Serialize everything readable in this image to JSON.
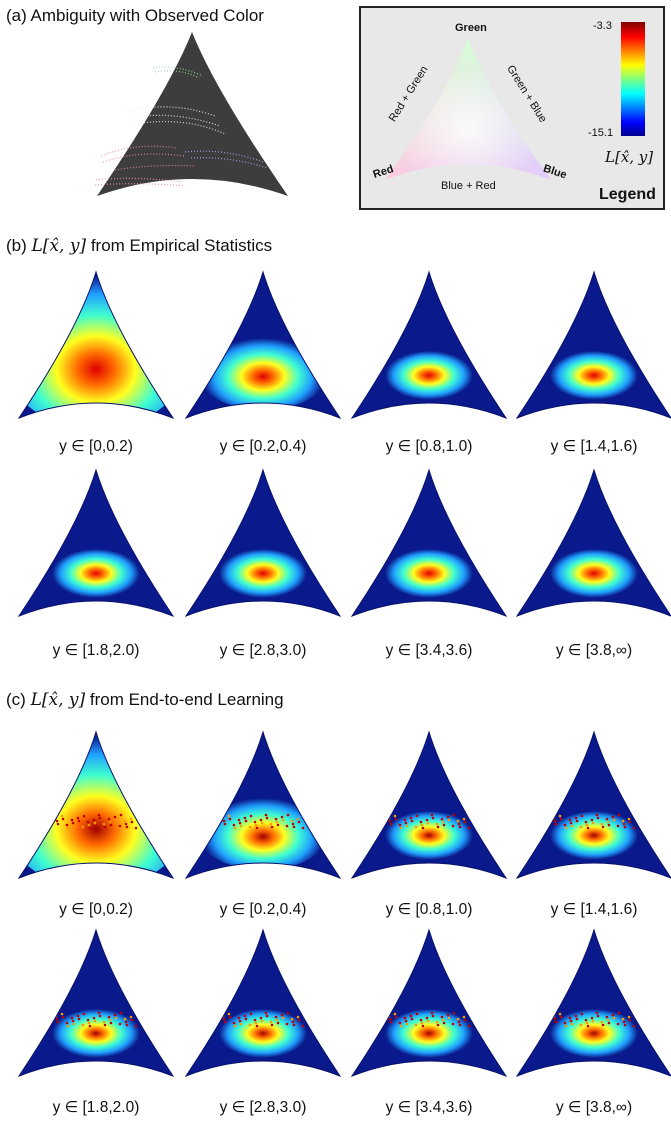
{
  "panel_a": {
    "title": "(a) Ambiguity with Observed Color",
    "legend": {
      "vertex_green": "Green",
      "vertex_red": "Red",
      "vertex_blue": "Blue",
      "edge_red_green": "Red + Green",
      "edge_green_blue": "Green + Blue",
      "edge_blue_red": "Blue + Red",
      "colorbar_max": "-3.3",
      "colorbar_min": "-15.1",
      "colorbar_label": "L[x̂, y]",
      "title": "Legend"
    }
  },
  "panel_b": {
    "title_prefix": "(b)",
    "title_math": "L[x̂, y]",
    "title_suffix": "from Empirical Statistics",
    "captions": [
      "y ∈ [0,0.2)",
      "y ∈ [0.2,0.4)",
      "y ∈ [0.8,1.0)",
      "y ∈ [1.4,1.6)",
      "y ∈ [1.8,2.0)",
      "y ∈ [2.8,3.0)",
      "y ∈ [3.4,3.6)",
      "y ∈ [3.8,∞)"
    ]
  },
  "panel_c": {
    "title_prefix": "(c)",
    "title_math": "L[x̂, y]",
    "title_suffix": "from End-to-end Learning",
    "captions": [
      "y ∈ [0,0.2)",
      "y ∈ [0.2,0.4)",
      "y ∈ [0.8,1.0)",
      "y ∈ [1.4,1.6)",
      "y ∈ [1.8,2.0)",
      "y ∈ [2.8,3.0)",
      "y ∈ [3.4,3.6)",
      "y ∈ [3.8,∞)"
    ]
  },
  "colors": {
    "heatmap_background": "#0a1a8c",
    "legend_background": "#e8e8e8",
    "panel_a_background": "#3d3d3d"
  }
}
